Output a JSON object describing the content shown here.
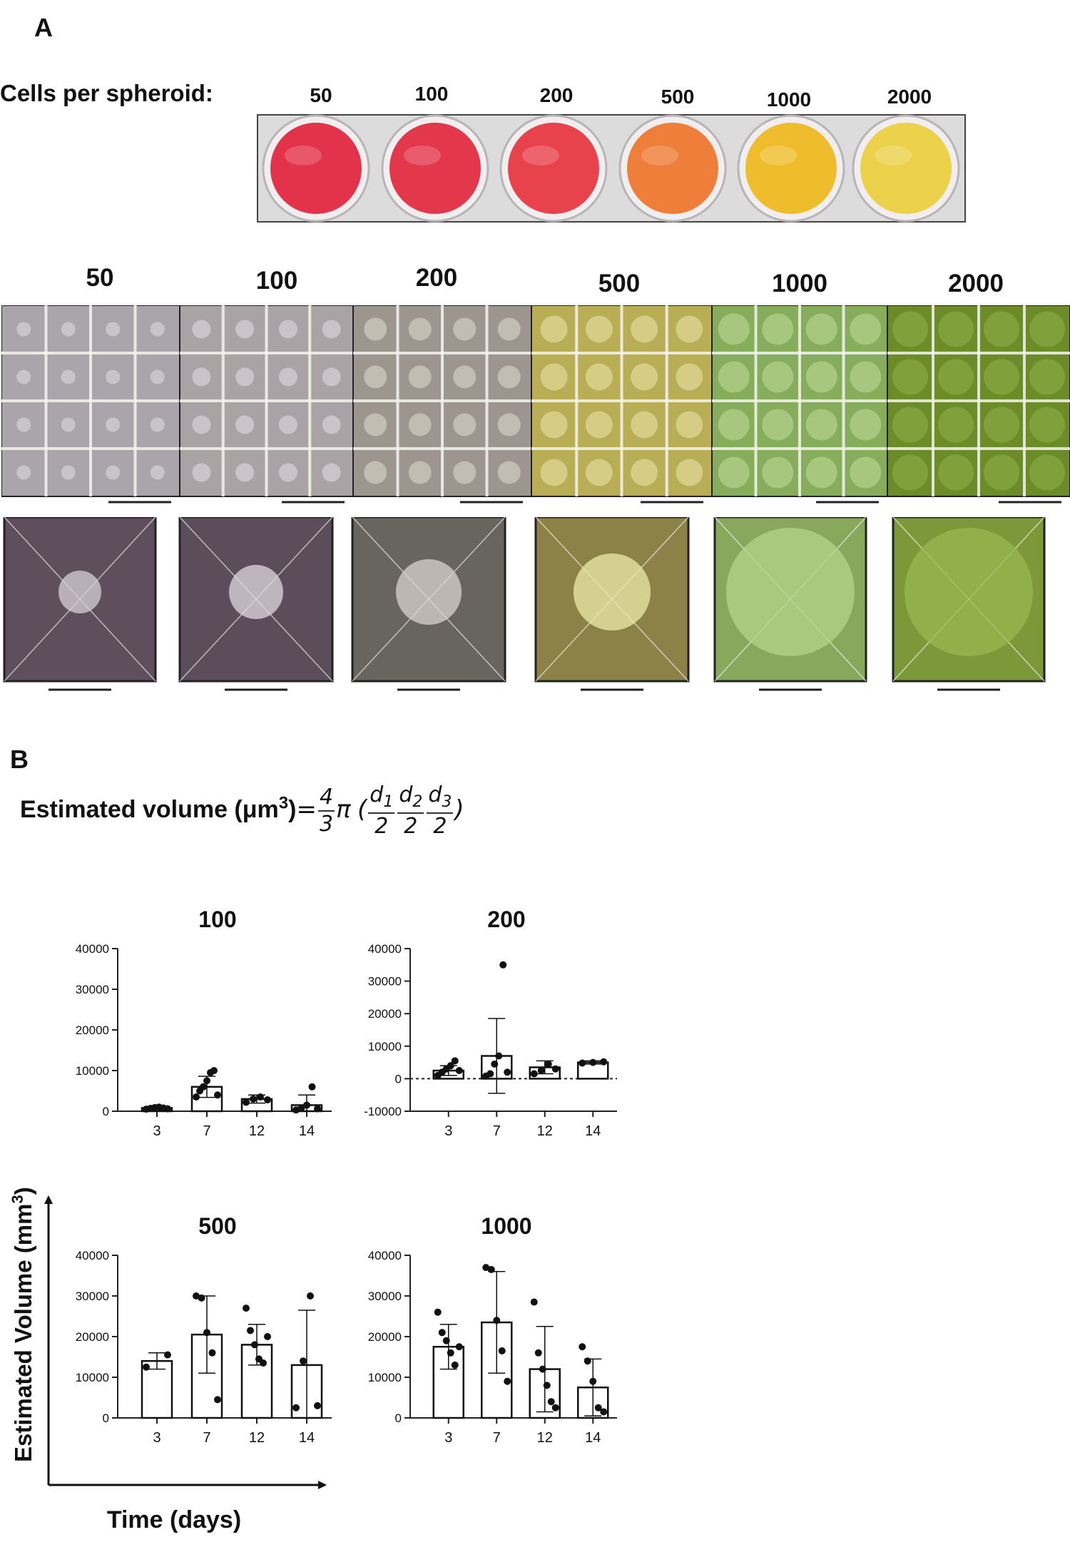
{
  "panel_a": {
    "letter": "A",
    "cells_label": "Cells per spheroid:",
    "well_labels": [
      "50",
      "100",
      "200",
      "500",
      "1000",
      "2000"
    ],
    "well_colors": [
      "#e3334a",
      "#e3384c",
      "#e8424c",
      "#ee7e3a",
      "#efbd2b",
      "#ecd14a"
    ],
    "micro_labels": [
      "50",
      "100",
      "200",
      "500",
      "1000",
      "2000"
    ],
    "micro_bg": [
      "#aaa5aa",
      "#a9a3a6",
      "#9c968e",
      "#b9ae55",
      "#86ad5c",
      "#6c8c2a"
    ],
    "micro_spot": [
      "#d9d4d8",
      "#dad5d8",
      "#d7d2c8",
      "#e3dca0",
      "#b8d690",
      "#8aaa44"
    ],
    "closeup_bg": [
      "#5e4e5e",
      "#5c4d5c",
      "#68655f",
      "#8c8248",
      "#88a85c",
      "#7c9838"
    ],
    "closeup_spot": [
      "#d8d0d8",
      "#e0d8e0",
      "#d8d4cc",
      "#eee8a8",
      "#b4d488",
      "#9ab850"
    ]
  },
  "panel_b": {
    "letter": "B",
    "formula": {
      "prefix": "Estimated volume (μm",
      "exp": "3",
      "suffix": ")",
      "eq": "=",
      "four": "4",
      "three": "3",
      "pi": "π",
      "open": "(",
      "close": ")",
      "d": "d",
      "two": "2",
      "subs": [
        "1",
        "2",
        "3"
      ]
    },
    "y_axis_title": "Estimated Volume (mm",
    "y_axis_exp": "3",
    "y_axis_close": ")",
    "x_axis_title": "Time (days)"
  },
  "chart_data": [
    {
      "type": "bar",
      "title": "100",
      "categories": [
        "3",
        "7",
        "12",
        "14"
      ],
      "values": [
        800,
        6000,
        3000,
        1500
      ],
      "err": [
        400,
        2600,
        1000,
        2500
      ],
      "points": [
        [
          500,
          700,
          900,
          1000,
          800,
          600
        ],
        [
          3500,
          5000,
          6000,
          7500,
          9500,
          10000,
          4000
        ],
        [
          2200,
          3000,
          3500,
          2800
        ],
        [
          300,
          800,
          1500,
          6000,
          600
        ]
      ],
      "yticks": [
        0,
        10000,
        20000,
        30000,
        40000
      ],
      "ylim": [
        0,
        40000
      ],
      "zero_line": false
    },
    {
      "type": "bar",
      "title": "200",
      "categories": [
        "3",
        "7",
        "12",
        "14"
      ],
      "values": [
        2500,
        7000,
        3500,
        5000
      ],
      "err": [
        1500,
        11500,
        2000,
        500
      ],
      "points": [
        [
          1000,
          2000,
          3000,
          4000,
          5500,
          2500
        ],
        [
          800,
          1500,
          4500,
          7000,
          35000,
          2000
        ],
        [
          1500,
          2500,
          4500,
          3000
        ],
        [
          4800,
          5000,
          5200
        ]
      ],
      "yticks": [
        -10000,
        0,
        10000,
        20000,
        30000,
        40000
      ],
      "ylim": [
        -10000,
        40000
      ],
      "zero_line": true
    },
    {
      "type": "bar",
      "title": "500",
      "categories": [
        "3",
        "7",
        "12",
        "14"
      ],
      "values": [
        14000,
        20500,
        18000,
        13000
      ],
      "err": [
        2000,
        9500,
        5000,
        13500
      ],
      "points": [
        [
          12500,
          15500
        ],
        [
          30000,
          29500,
          21000,
          16000,
          4500
        ],
        [
          27000,
          21500,
          18000,
          14500,
          13500,
          20000
        ],
        [
          2500,
          14000,
          30000,
          3000
        ]
      ],
      "yticks": [
        0,
        10000,
        20000,
        30000,
        40000
      ],
      "ylim": [
        0,
        40000
      ],
      "zero_line": false
    },
    {
      "type": "bar",
      "title": "1000",
      "categories": [
        "3",
        "7",
        "12",
        "14"
      ],
      "values": [
        17500,
        23500,
        12000,
        7500
      ],
      "err": [
        5500,
        12500,
        10500,
        7000
      ],
      "points": [
        [
          26000,
          21000,
          19000,
          16000,
          13000,
          17500
        ],
        [
          37000,
          36500,
          24000,
          16500,
          9000
        ],
        [
          28500,
          16000,
          12000,
          8000,
          4000,
          2500
        ],
        [
          17500,
          14000,
          9000,
          2500,
          1500
        ]
      ],
      "yticks": [
        0,
        10000,
        20000,
        30000,
        40000
      ],
      "ylim": [
        0,
        40000
      ],
      "zero_line": false
    }
  ]
}
